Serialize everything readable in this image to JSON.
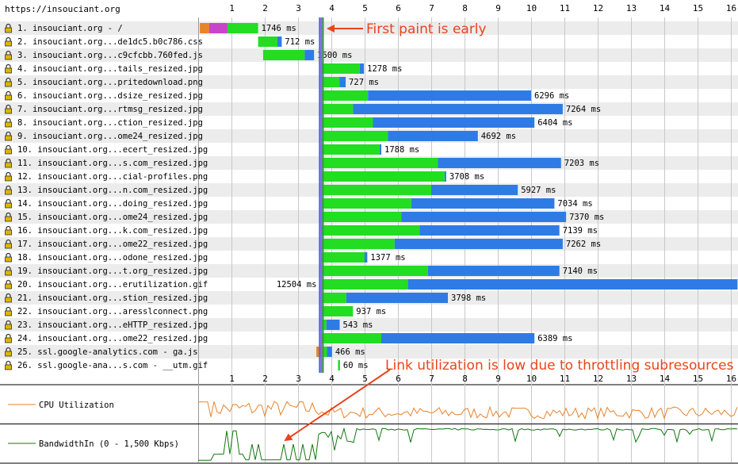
{
  "page": {
    "url": "https://insouciant.org"
  },
  "time_axis": {
    "max_seconds": 16,
    "ticks": [
      1,
      2,
      3,
      4,
      5,
      6,
      7,
      8,
      9,
      10,
      11,
      12,
      13,
      14,
      15,
      16
    ]
  },
  "markers": [
    {
      "name": "first-paint-marker",
      "seconds": 3.75,
      "color": "#22aa22"
    },
    {
      "name": "dom-content-marker",
      "seconds": 3.7,
      "color": "#a855f7"
    },
    {
      "name": "onload-marker",
      "seconds": 3.65,
      "color": "#4169e1"
    }
  ],
  "colors": {
    "ssl": "#e8832a",
    "connect": "#c844c8",
    "ttfb": "#22dd22",
    "download": "#2e7be6",
    "row_alt": "#ececec",
    "lock": "#e0b400",
    "annotation": "#e8451b",
    "cpu_line": "#e8832a",
    "bw_line": "#127812"
  },
  "requests": [
    {
      "label": "1. insouciant.org - /",
      "start": 0.05,
      "ssl": 0.28,
      "connect": 0.55,
      "ttfb": 0.92,
      "dl": 0.0,
      "duration_label": "1746 ms"
    },
    {
      "label": "2. insouciant.org...de1dc5.b0c786.css",
      "start": 1.8,
      "ttfb": 0.58,
      "dl": 0.13,
      "duration_label": "712 ms"
    },
    {
      "label": "3. insouciant.org...c9cfcbb.760fed.js",
      "start": 1.95,
      "ttfb": 1.25,
      "dl": 0.28,
      "duration_label": "1500 ms"
    },
    {
      "label": "4. insouciant.org...tails_resized.jpg",
      "start": 3.7,
      "ttfb": 1.15,
      "dl": 0.13,
      "duration_label": "1278 ms"
    },
    {
      "label": "5. insouciant.org...pritedownload.png",
      "start": 3.7,
      "ttfb": 0.55,
      "dl": 0.18,
      "duration_label": "727 ms"
    },
    {
      "label": "6. insouciant.org...dsize_resized.jpg",
      "start": 3.7,
      "ttfb": 1.4,
      "dl": 4.9,
      "duration_label": "6296 ms"
    },
    {
      "label": "7. insouciant.org...rtmsg_resized.jpg",
      "start": 3.7,
      "ttfb": 0.95,
      "dl": 6.3,
      "duration_label": "7264 ms"
    },
    {
      "label": "8. insouciant.org...ction_resized.jpg",
      "start": 3.7,
      "ttfb": 1.55,
      "dl": 4.85,
      "duration_label": "6404 ms"
    },
    {
      "label": "9. insouciant.org...ome24_resized.jpg",
      "start": 3.7,
      "ttfb": 2.0,
      "dl": 2.7,
      "duration_label": "4692 ms"
    },
    {
      "label": "10. insouciant.org...ecert_resized.jpg",
      "start": 3.7,
      "ttfb": 1.75,
      "dl": 0.05,
      "duration_label": "1788 ms"
    },
    {
      "label": "11. insouciant.org...s.com_resized.jpg",
      "start": 3.7,
      "ttfb": 3.5,
      "dl": 3.7,
      "duration_label": "7203 ms"
    },
    {
      "label": "12. insouciant.org...cial-profiles.png",
      "start": 3.7,
      "ttfb": 3.7,
      "dl": 0.05,
      "duration_label": "3708 ms"
    },
    {
      "label": "13. insouciant.org...n.com_resized.jpg",
      "start": 3.7,
      "ttfb": 3.3,
      "dl": 2.6,
      "duration_label": "5927 ms"
    },
    {
      "label": "14. insouciant.org...doing_resized.jpg",
      "start": 3.7,
      "ttfb": 2.7,
      "dl": 4.3,
      "duration_label": "7034 ms"
    },
    {
      "label": "15. insouciant.org...ome24_resized.jpg",
      "start": 3.7,
      "ttfb": 2.4,
      "dl": 4.95,
      "duration_label": "7370 ms"
    },
    {
      "label": "16. insouciant.org...k.com_resized.jpg",
      "start": 3.7,
      "ttfb": 2.95,
      "dl": 4.2,
      "duration_label": "7139 ms"
    },
    {
      "label": "17. insouciant.org...ome22_resized.jpg",
      "start": 3.7,
      "ttfb": 2.2,
      "dl": 5.05,
      "duration_label": "7262 ms"
    },
    {
      "label": "18. insouciant.org...odone_resized.jpg",
      "start": 3.7,
      "ttfb": 1.3,
      "dl": 0.08,
      "duration_label": "1377 ms"
    },
    {
      "label": "19. insouciant.org...t.org_resized.jpg",
      "start": 3.7,
      "ttfb": 3.2,
      "dl": 3.95,
      "duration_label": "7140 ms"
    },
    {
      "label": "20. insouciant.org...erutilization.gif",
      "start": 3.7,
      "ttfb": 2.6,
      "dl": 9.9,
      "duration_label": "12504 ms",
      "label_side": "left"
    },
    {
      "label": "21. insouciant.org...stion_resized.jpg",
      "start": 3.7,
      "ttfb": 0.75,
      "dl": 3.05,
      "duration_label": "3798 ms"
    },
    {
      "label": "22. insouciant.org...aresslconnect.png",
      "start": 3.7,
      "ttfb": 0.95,
      "dl": 0.0,
      "duration_label": "937 ms"
    },
    {
      "label": "23. insouciant.org...eHTTP_resized.jpg",
      "start": 3.7,
      "ttfb": 0.15,
      "dl": 0.4,
      "duration_label": "543 ms"
    },
    {
      "label": "24. insouciant.org...ome22_resized.jpg",
      "start": 3.7,
      "ttfb": 1.8,
      "dl": 4.6,
      "duration_label": "6389 ms"
    },
    {
      "label": "25. ssl.google-analytics.com - ga.js",
      "start": 3.55,
      "ssl": 0.22,
      "ttfb": 0.1,
      "dl": 0.15,
      "duration_label": "466 ms"
    },
    {
      "label": "26. ssl.google-ana...s.com - __utm.gif",
      "start": 4.2,
      "ttfb": 0.06,
      "dl": 0.0,
      "duration_label": "60 ms"
    }
  ],
  "graphs": {
    "cpu": {
      "label": "CPU Utilization"
    },
    "bandwidth": {
      "label": "BandwidthIn (0 - 1,500 Kbps)"
    }
  },
  "annotations": {
    "first_paint": "First paint is early",
    "link_util": "Link utilization is low due to throttling subresources"
  }
}
